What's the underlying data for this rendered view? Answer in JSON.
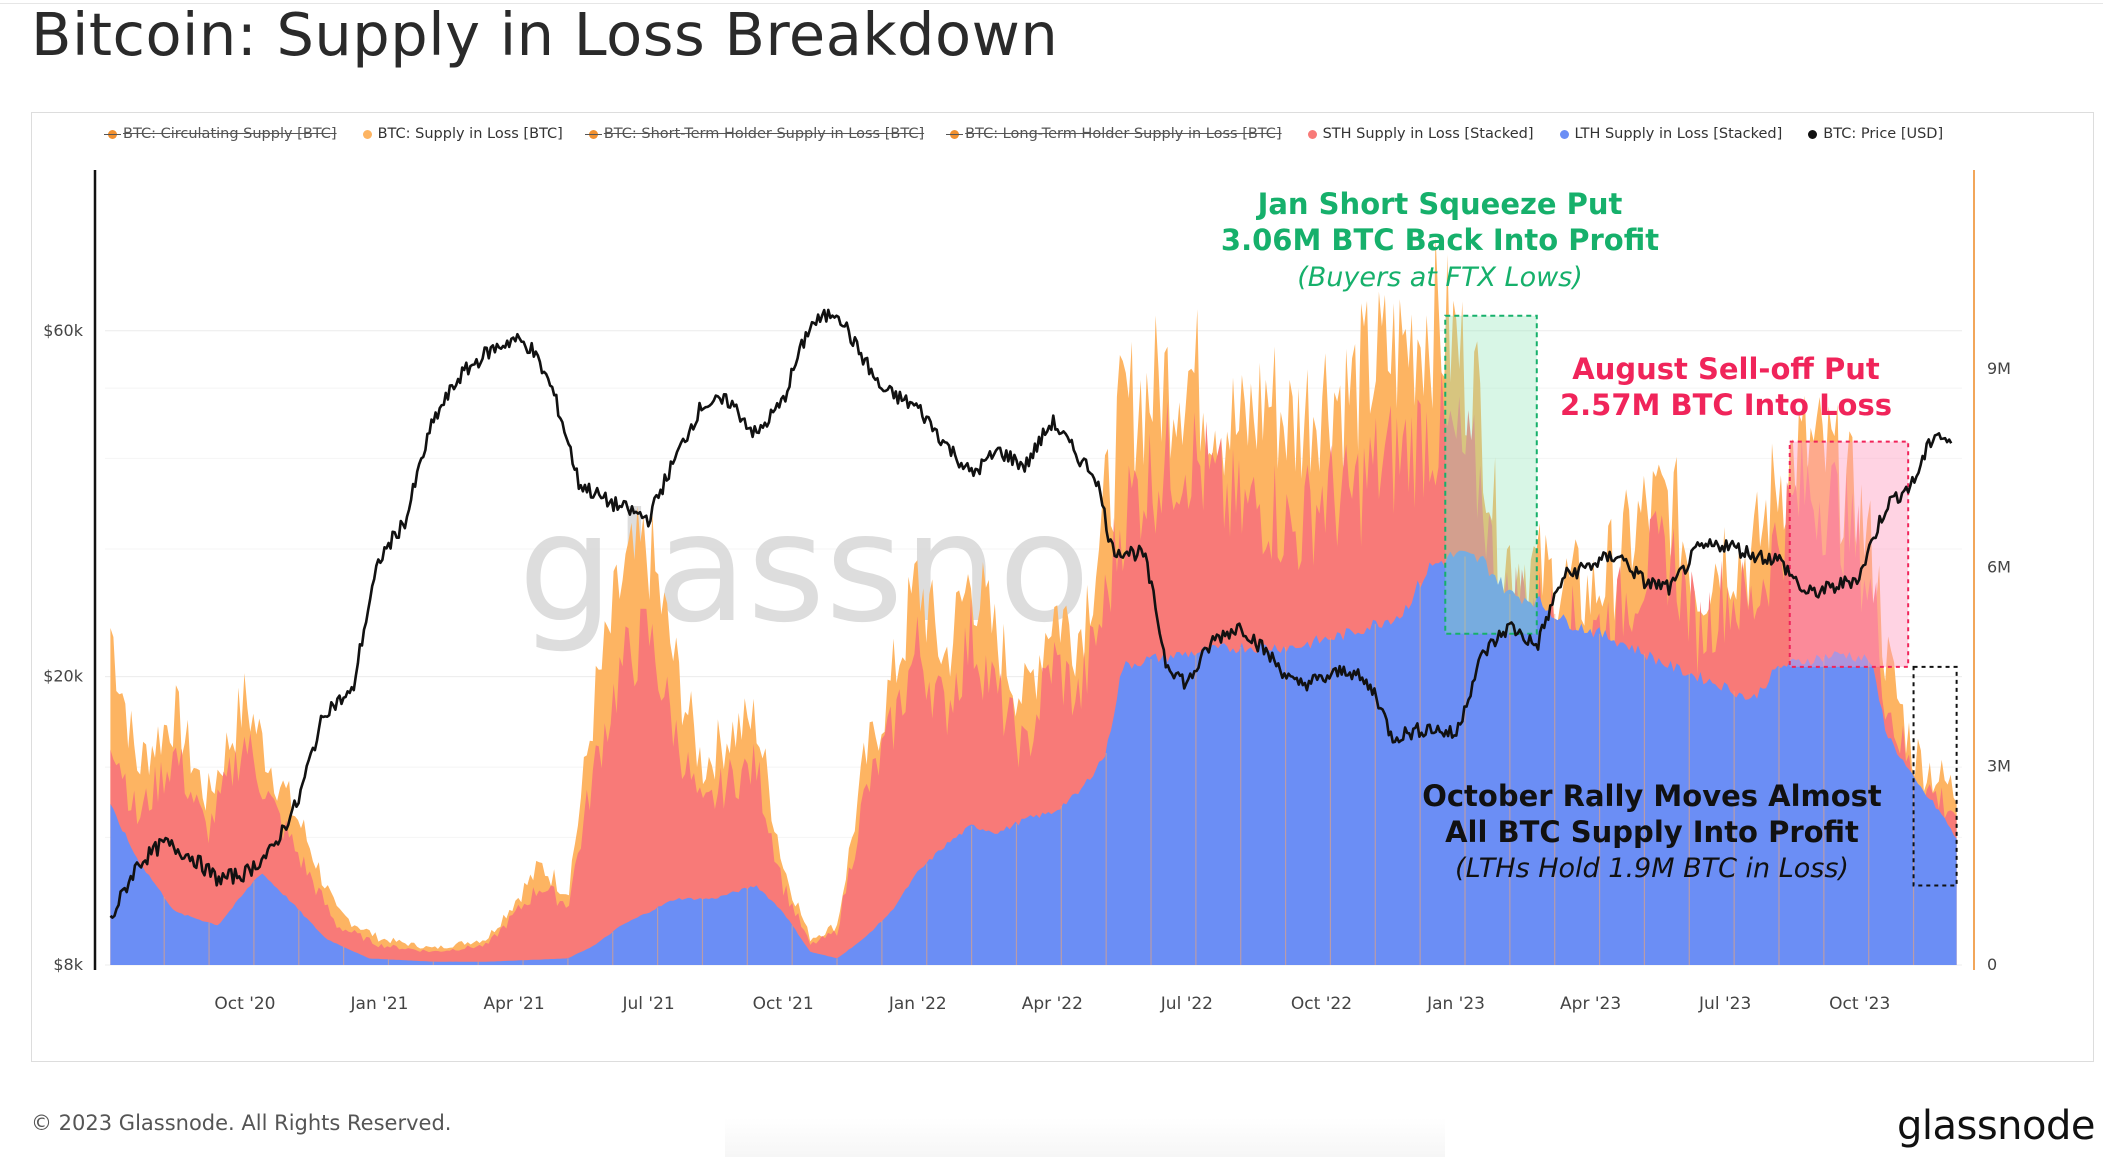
{
  "page": {
    "title": "Bitcoin: Supply in Loss Breakdown",
    "copyright": "© 2023 Glassnode. All Rights Reserved.",
    "brand": "glassnode",
    "watermark": "glassnode"
  },
  "legend": [
    {
      "label": "BTC: Circulating Supply [BTC]",
      "color": "#f0902f",
      "disabled": true
    },
    {
      "label": "BTC: Supply in Loss [BTC]",
      "color": "#fdb462",
      "disabled": false
    },
    {
      "label": "BTC: Short-Term Holder Supply in Loss [BTC]",
      "color": "#f0902f",
      "disabled": true
    },
    {
      "label": "BTC: Long-Term Holder Supply in Loss [BTC]",
      "color": "#f0902f",
      "disabled": true
    },
    {
      "label": "STH Supply in Loss [Stacked]",
      "color": "#f87a78",
      "disabled": false
    },
    {
      "label": "LTH Supply in Loss [Stacked]",
      "color": "#6b8ef5",
      "disabled": false
    },
    {
      "label": "BTC: Price [USD]",
      "color": "#111111",
      "disabled": false
    }
  ],
  "chart_data": {
    "type": "area",
    "x_ticks": [
      "Oct '20",
      "Jan '21",
      "Apr '21",
      "Jul '21",
      "Oct '21",
      "Jan '22",
      "Apr '22",
      "Jul '22",
      "Oct '22",
      "Jan '23",
      "Apr '23",
      "Jul '23",
      "Oct '23"
    ],
    "x_tick_months": [
      2020.75,
      2021.0,
      2021.25,
      2021.5,
      2021.75,
      2022.0,
      2022.25,
      2022.5,
      2022.75,
      2023.0,
      2023.25,
      2023.5,
      2023.75
    ],
    "x_range": [
      2020.49,
      2023.94
    ],
    "y_left_ticks": [
      "$8k",
      "$20k",
      "$60k"
    ],
    "y_left_tick_values": [
      8000,
      20000,
      60000
    ],
    "y_left_scale": "log",
    "y_left_range": [
      8000,
      100000
    ],
    "y_right_ticks": [
      "0",
      "3M",
      "6M",
      "9M"
    ],
    "y_right_tick_values": [
      0,
      3000000,
      6000000,
      9000000
    ],
    "y_right_range": [
      0,
      12000000
    ],
    "series": [
      {
        "name": "LTH Supply in Loss [Stacked]",
        "color": "#6b8ef5",
        "points": [
          [
            2020.5,
            2.4
          ],
          [
            2020.55,
            1.6
          ],
          [
            2020.62,
            0.8
          ],
          [
            2020.7,
            0.6
          ],
          [
            2020.78,
            1.4
          ],
          [
            2020.83,
            1.0
          ],
          [
            2020.9,
            0.4
          ],
          [
            2020.98,
            0.1
          ],
          [
            2021.1,
            0.05
          ],
          [
            2021.2,
            0.05
          ],
          [
            2021.35,
            0.1
          ],
          [
            2021.4,
            0.3
          ],
          [
            2021.45,
            0.6
          ],
          [
            2021.5,
            0.8
          ],
          [
            2021.55,
            1.0
          ],
          [
            2021.62,
            1.0
          ],
          [
            2021.7,
            1.2
          ],
          [
            2021.75,
            0.8
          ],
          [
            2021.8,
            0.2
          ],
          [
            2021.85,
            0.1
          ],
          [
            2021.9,
            0.4
          ],
          [
            2021.95,
            0.8
          ],
          [
            2022.0,
            1.4
          ],
          [
            2022.05,
            1.8
          ],
          [
            2022.1,
            2.1
          ],
          [
            2022.15,
            2.0
          ],
          [
            2022.2,
            2.2
          ],
          [
            2022.25,
            2.3
          ],
          [
            2022.3,
            2.6
          ],
          [
            2022.35,
            3.2
          ],
          [
            2022.38,
            4.5
          ],
          [
            2022.42,
            4.6
          ],
          [
            2022.5,
            4.7
          ],
          [
            2022.6,
            4.8
          ],
          [
            2022.7,
            4.8
          ],
          [
            2022.8,
            5.0
          ],
          [
            2022.9,
            5.3
          ],
          [
            2022.95,
            6.0
          ],
          [
            2023.0,
            6.2
          ],
          [
            2023.05,
            6.1
          ],
          [
            2023.1,
            5.6
          ],
          [
            2023.15,
            5.5
          ],
          [
            2023.2,
            5.2
          ],
          [
            2023.3,
            4.9
          ],
          [
            2023.4,
            4.5
          ],
          [
            2023.5,
            4.2
          ],
          [
            2023.55,
            4.0
          ],
          [
            2023.6,
            4.5
          ],
          [
            2023.65,
            4.6
          ],
          [
            2023.72,
            4.7
          ],
          [
            2023.77,
            4.6
          ],
          [
            2023.8,
            3.5
          ],
          [
            2023.85,
            2.8
          ],
          [
            2023.9,
            2.3
          ],
          [
            2023.93,
            1.9
          ]
        ]
      },
      {
        "name": "STH Supply in Loss [Stacked]",
        "color": "#f87a78",
        "points": [
          [
            2020.5,
            3.6
          ],
          [
            2020.55,
            2.2
          ],
          [
            2020.62,
            3.2
          ],
          [
            2020.68,
            2.0
          ],
          [
            2020.75,
            3.4
          ],
          [
            2020.8,
            2.4
          ],
          [
            2020.86,
            1.5
          ],
          [
            2020.92,
            0.6
          ],
          [
            2021.0,
            0.3
          ],
          [
            2021.1,
            0.2
          ],
          [
            2021.2,
            0.3
          ],
          [
            2021.3,
            1.2
          ],
          [
            2021.35,
            0.9
          ],
          [
            2021.4,
            3.0
          ],
          [
            2021.45,
            4.5
          ],
          [
            2021.5,
            5.0
          ],
          [
            2021.55,
            3.5
          ],
          [
            2021.6,
            2.3
          ],
          [
            2021.65,
            2.8
          ],
          [
            2021.7,
            3.0
          ],
          [
            2021.75,
            1.2
          ],
          [
            2021.8,
            0.3
          ],
          [
            2021.85,
            0.5
          ],
          [
            2021.9,
            2.5
          ],
          [
            2021.95,
            3.5
          ],
          [
            2022.0,
            4.8
          ],
          [
            2022.05,
            3.8
          ],
          [
            2022.1,
            5.0
          ],
          [
            2022.15,
            4.0
          ],
          [
            2022.2,
            3.2
          ],
          [
            2022.25,
            4.6
          ],
          [
            2022.3,
            4.0
          ],
          [
            2022.35,
            5.5
          ],
          [
            2022.38,
            6.8
          ],
          [
            2022.42,
            7.3
          ],
          [
            2022.5,
            7.8
          ],
          [
            2022.55,
            7.2
          ],
          [
            2022.6,
            6.8
          ],
          [
            2022.65,
            7.0
          ],
          [
            2022.7,
            6.5
          ],
          [
            2022.75,
            7.1
          ],
          [
            2022.8,
            7.0
          ],
          [
            2022.85,
            7.5
          ],
          [
            2022.9,
            7.7
          ],
          [
            2022.95,
            8.1
          ],
          [
            2023.0,
            7.8
          ],
          [
            2023.05,
            7.2
          ],
          [
            2023.08,
            5.3
          ],
          [
            2023.12,
            5.6
          ],
          [
            2023.18,
            5.2
          ],
          [
            2023.25,
            5.0
          ],
          [
            2023.3,
            5.3
          ],
          [
            2023.35,
            6.0
          ],
          [
            2023.4,
            6.2
          ],
          [
            2023.45,
            5.0
          ],
          [
            2023.5,
            5.6
          ],
          [
            2023.55,
            5.4
          ],
          [
            2023.6,
            6.5
          ],
          [
            2023.65,
            7.2
          ],
          [
            2023.7,
            7.0
          ],
          [
            2023.75,
            6.2
          ],
          [
            2023.78,
            5.3
          ],
          [
            2023.8,
            4.0
          ],
          [
            2023.85,
            2.8
          ],
          [
            2023.9,
            2.5
          ],
          [
            2023.93,
            2.3
          ]
        ]
      },
      {
        "name": "BTC: Supply in Loss [BTC]",
        "color": "#fdb462",
        "points": [
          [
            2020.5,
            5.1
          ],
          [
            2020.55,
            3.0
          ],
          [
            2020.62,
            3.8
          ],
          [
            2020.68,
            2.5
          ],
          [
            2020.75,
            4.0
          ],
          [
            2020.8,
            3.0
          ],
          [
            2020.86,
            2.0
          ],
          [
            2020.92,
            0.8
          ],
          [
            2021.0,
            0.4
          ],
          [
            2021.1,
            0.25
          ],
          [
            2021.2,
            0.4
          ],
          [
            2021.3,
            1.5
          ],
          [
            2021.35,
            1.1
          ],
          [
            2021.4,
            4.0
          ],
          [
            2021.45,
            5.8
          ],
          [
            2021.5,
            6.3
          ],
          [
            2021.55,
            4.5
          ],
          [
            2021.6,
            3.0
          ],
          [
            2021.65,
            3.5
          ],
          [
            2021.7,
            3.7
          ],
          [
            2021.75,
            1.5
          ],
          [
            2021.8,
            0.4
          ],
          [
            2021.85,
            0.6
          ],
          [
            2021.9,
            3.0
          ],
          [
            2021.95,
            4.2
          ],
          [
            2022.0,
            5.8
          ],
          [
            2022.05,
            4.6
          ],
          [
            2022.1,
            5.9
          ],
          [
            2022.15,
            4.8
          ],
          [
            2022.2,
            4.0
          ],
          [
            2022.25,
            5.4
          ],
          [
            2022.3,
            5.0
          ],
          [
            2022.35,
            6.9
          ],
          [
            2022.38,
            8.3
          ],
          [
            2022.42,
            8.6
          ],
          [
            2022.5,
            9.0
          ],
          [
            2022.55,
            8.5
          ],
          [
            2022.6,
            8.0
          ],
          [
            2022.65,
            8.6
          ],
          [
            2022.7,
            8.1
          ],
          [
            2022.75,
            8.7
          ],
          [
            2022.8,
            8.6
          ],
          [
            2022.85,
            9.1
          ],
          [
            2022.9,
            9.3
          ],
          [
            2022.95,
            9.8
          ],
          [
            2023.0,
            9.4
          ],
          [
            2023.05,
            8.3
          ],
          [
            2023.08,
            6.2
          ],
          [
            2023.12,
            6.1
          ],
          [
            2023.18,
            5.8
          ],
          [
            2023.25,
            5.6
          ],
          [
            2023.3,
            6.1
          ],
          [
            2023.35,
            6.8
          ],
          [
            2023.4,
            7.0
          ],
          [
            2023.45,
            5.7
          ],
          [
            2023.5,
            6.3
          ],
          [
            2023.55,
            6.1
          ],
          [
            2023.6,
            7.4
          ],
          [
            2023.65,
            7.8
          ],
          [
            2023.7,
            7.6
          ],
          [
            2023.75,
            6.8
          ],
          [
            2023.78,
            6.0
          ],
          [
            2023.8,
            4.6
          ],
          [
            2023.85,
            3.2
          ],
          [
            2023.9,
            2.8
          ],
          [
            2023.93,
            2.6
          ]
        ]
      },
      {
        "name": "BTC: Price [USD]",
        "color": "#111111",
        "points": [
          [
            2020.5,
            9200
          ],
          [
            2020.55,
            11000
          ],
          [
            2020.6,
            11800
          ],
          [
            2020.65,
            11300
          ],
          [
            2020.7,
            10500
          ],
          [
            2020.75,
            10700
          ],
          [
            2020.8,
            11500
          ],
          [
            2020.85,
            13500
          ],
          [
            2020.9,
            18000
          ],
          [
            2020.95,
            19000
          ],
          [
            2021.0,
            29000
          ],
          [
            2021.05,
            33000
          ],
          [
            2021.1,
            45000
          ],
          [
            2021.15,
            52000
          ],
          [
            2021.2,
            56000
          ],
          [
            2021.25,
            58500
          ],
          [
            2021.28,
            57000
          ],
          [
            2021.32,
            50000
          ],
          [
            2021.37,
            37000
          ],
          [
            2021.42,
            35000
          ],
          [
            2021.5,
            33000
          ],
          [
            2021.55,
            40000
          ],
          [
            2021.6,
            47500
          ],
          [
            2021.65,
            48000
          ],
          [
            2021.7,
            43000
          ],
          [
            2021.75,
            48000
          ],
          [
            2021.8,
            61000
          ],
          [
            2021.85,
            64000
          ],
          [
            2021.88,
            58000
          ],
          [
            2021.93,
            50000
          ],
          [
            2022.0,
            47000
          ],
          [
            2022.05,
            42000
          ],
          [
            2022.1,
            38000
          ],
          [
            2022.15,
            41000
          ],
          [
            2022.2,
            39000
          ],
          [
            2022.25,
            45000
          ],
          [
            2022.3,
            40000
          ],
          [
            2022.33,
            38000
          ],
          [
            2022.36,
            30000
          ],
          [
            2022.42,
            29500
          ],
          [
            2022.46,
            21000
          ],
          [
            2022.5,
            19500
          ],
          [
            2022.55,
            22500
          ],
          [
            2022.6,
            23500
          ],
          [
            2022.65,
            21500
          ],
          [
            2022.7,
            19500
          ],
          [
            2022.75,
            19800
          ],
          [
            2022.8,
            20500
          ],
          [
            2022.85,
            19000
          ],
          [
            2022.88,
            16500
          ],
          [
            2022.95,
            17000
          ],
          [
            2023.0,
            16600
          ],
          [
            2023.05,
            21500
          ],
          [
            2023.1,
            23500
          ],
          [
            2023.15,
            22000
          ],
          [
            2023.2,
            27500
          ],
          [
            2023.25,
            28500
          ],
          [
            2023.3,
            29500
          ],
          [
            2023.35,
            27000
          ],
          [
            2023.4,
            26500
          ],
          [
            2023.45,
            30000
          ],
          [
            2023.5,
            30500
          ],
          [
            2023.55,
            29500
          ],
          [
            2023.6,
            29000
          ],
          [
            2023.65,
            26000
          ],
          [
            2023.7,
            26500
          ],
          [
            2023.75,
            27500
          ],
          [
            2023.8,
            34500
          ],
          [
            2023.85,
            37000
          ],
          [
            2023.89,
            43500
          ],
          [
            2023.92,
            42000
          ]
        ]
      }
    ],
    "annotations": [
      {
        "lines": [
          "Jan Short Squeeze Put",
          "3.06M BTC Back Into Profit"
        ],
        "subline": "(Buyers at FTX Lows)",
        "color": "#16b06b"
      },
      {
        "lines": [
          "August Sell-off Put",
          "2.57M BTC Into Loss"
        ],
        "subline": "",
        "color": "#f0245a"
      },
      {
        "lines": [
          "October Rally Moves Almost",
          "All BTC Supply Into Profit"
        ],
        "subline": "(LTHs Hold 1.9M BTC in Loss)",
        "color": "#111111"
      }
    ]
  }
}
